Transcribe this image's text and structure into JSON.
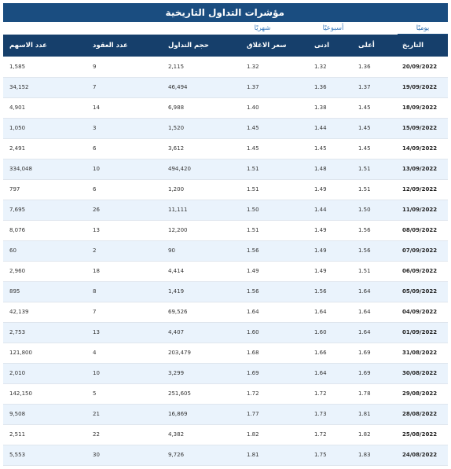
{
  "title": "مؤشرات التداول التاريخية",
  "tabs": {
    "daily": "يوميًا",
    "weekly": "أسبوعيًا",
    "monthly": "شهريًا"
  },
  "columns": [
    "التاريخ",
    "أعلى",
    "ادنى",
    "سعر الاغلاق",
    "حجم التداول",
    "عدد العقود",
    "عدد الاسهم"
  ],
  "rows": [
    [
      "20/09/2022",
      "1.36",
      "1.32",
      "1.32",
      "2,115",
      "9",
      "1,585"
    ],
    [
      "19/09/2022",
      "1.37",
      "1.36",
      "1.37",
      "46,494",
      "7",
      "34,152"
    ],
    [
      "18/09/2022",
      "1.45",
      "1.38",
      "1.40",
      "6,988",
      "14",
      "4,901"
    ],
    [
      "15/09/2022",
      "1.45",
      "1.44",
      "1.45",
      "1,520",
      "3",
      "1,050"
    ],
    [
      "14/09/2022",
      "1.45",
      "1.45",
      "1.45",
      "3,612",
      "6",
      "2,491"
    ],
    [
      "13/09/2022",
      "1.51",
      "1.48",
      "1.51",
      "494,420",
      "10",
      "334,048"
    ],
    [
      "12/09/2022",
      "1.51",
      "1.49",
      "1.51",
      "1,200",
      "6",
      "797"
    ],
    [
      "11/09/2022",
      "1.50",
      "1.44",
      "1.50",
      "11,111",
      "26",
      "7,695"
    ],
    [
      "08/09/2022",
      "1.56",
      "1.49",
      "1.51",
      "12,200",
      "13",
      "8,076"
    ],
    [
      "07/09/2022",
      "1.56",
      "1.49",
      "1.56",
      "90",
      "2",
      "60"
    ],
    [
      "06/09/2022",
      "1.51",
      "1.49",
      "1.49",
      "4,414",
      "18",
      "2,960"
    ],
    [
      "05/09/2022",
      "1.64",
      "1.56",
      "1.56",
      "1,419",
      "8",
      "895"
    ],
    [
      "04/09/2022",
      "1.64",
      "1.64",
      "1.64",
      "69,526",
      "7",
      "42,139"
    ],
    [
      "01/09/2022",
      "1.64",
      "1.60",
      "1.60",
      "4,407",
      "13",
      "2,753"
    ],
    [
      "31/08/2022",
      "1.69",
      "1.66",
      "1.68",
      "203,479",
      "4",
      "121,800"
    ],
    [
      "30/08/2022",
      "1.69",
      "1.64",
      "1.69",
      "3,299",
      "10",
      "2,010"
    ],
    [
      "29/08/2022",
      "1.78",
      "1.72",
      "1.72",
      "251,605",
      "5",
      "142,150"
    ],
    [
      "28/08/2022",
      "1.81",
      "1.73",
      "1.77",
      "16,869",
      "21",
      "9,508"
    ],
    [
      "25/08/2022",
      "1.82",
      "1.72",
      "1.82",
      "4,382",
      "22",
      "2,511"
    ],
    [
      "24/08/2022",
      "1.83",
      "1.75",
      "1.81",
      "9,726",
      "30",
      "5,553"
    ]
  ],
  "colors": {
    "title_bg": "#1a4d80",
    "header_bg": "#163f6b",
    "stripe": "#eaf3fc",
    "tab_text": "#3a7cc0"
  }
}
